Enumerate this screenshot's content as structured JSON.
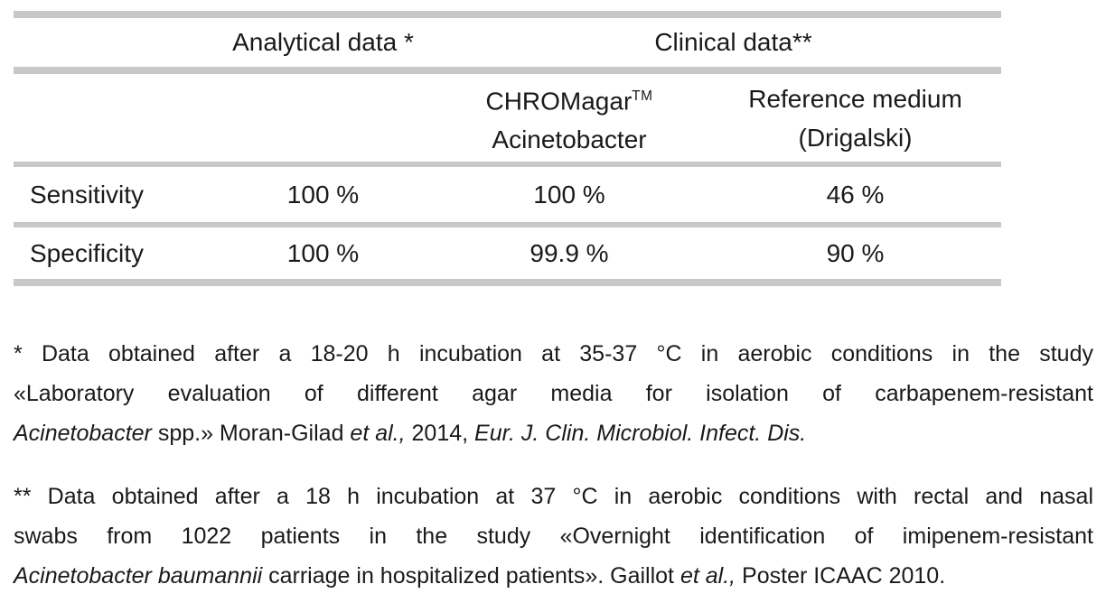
{
  "colors": {
    "line_gray": "#c7c8c9",
    "text": "#1a1a1a",
    "background": "#ffffff"
  },
  "table": {
    "header": {
      "analytical_label": "Analytical data *",
      "clinical_label": "Clinical data**",
      "chromagar_brand": "CHROMagar",
      "chromagar_trademark": "TM",
      "chromagar_species": "Acinetobacter",
      "reference_medium_line1": "Reference medium",
      "reference_medium_line2": "(Drigalski)"
    },
    "rows": [
      {
        "label": "Sensitivity",
        "analytical": "100 %",
        "chromagar": "100 %",
        "reference": "46 %"
      },
      {
        "label": "Specificity",
        "analytical": "100 %",
        "chromagar": "99.9 %",
        "reference": "90 %"
      }
    ]
  },
  "footnotes": {
    "analytical_note": {
      "line1": "* Data obtained after a 18-20 h incubation at 35-37 °C in aerobic conditions in the study",
      "line2": "«Laboratory evaluation of different agar media for isolation of carbapenem-resistant",
      "line3": {
        "italic_species": "Acinetobacter",
        "regular_a": " spp.» Moran-Gilad ",
        "italic_etal": "et al.,",
        "regular_b": " 2014, ",
        "italic_journal": "Eur. J. Clin. Microbiol. Infect. Dis."
      }
    },
    "clinical_note": {
      "line1": "** Data obtained after a 18 h incubation at 37 °C in aerobic conditions with rectal and nasal",
      "line2": "swabs from 1022 patients in the study «Overnight identification of imipenem-resistant",
      "line3": {
        "italic_species": "Acinetobacter baumannii",
        "regular_a": " carriage in hospitalized patients». Gaillot ",
        "italic_etal": "et al.,",
        "regular_b": " Poster ICAAC 2010."
      }
    }
  }
}
